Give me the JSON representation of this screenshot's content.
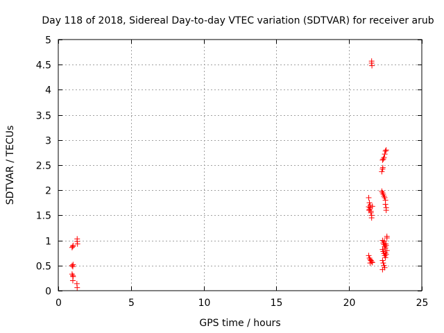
{
  "chart_data": {
    "type": "scatter",
    "title": "Day 118 of 2018, Sidereal Day-to-day VTEC variation (SDTVAR) for receiver arub",
    "xlabel": "GPS time / hours",
    "ylabel": "SDTVAR / TECUs",
    "xlim": [
      0,
      25
    ],
    "ylim": [
      0,
      5
    ],
    "xticks": [
      0,
      5,
      10,
      15,
      20,
      25
    ],
    "yticks": [
      0,
      0.5,
      1,
      1.5,
      2,
      2.5,
      3,
      3.5,
      4,
      4.5,
      5
    ],
    "xtick_labels": [
      "0",
      "5",
      "10",
      "15",
      "20",
      "25"
    ],
    "ytick_labels": [
      "0",
      "0.5",
      "1",
      "1.5",
      "2",
      "2.5",
      "3",
      "3.5",
      "4",
      "4.5",
      "5"
    ],
    "grid": true,
    "marker": "+",
    "color": "#ff0000",
    "series": [
      {
        "name": "SDTVAR",
        "points": [
          [
            0.95,
            0.86
          ],
          [
            1.0,
            0.88
          ],
          [
            1.02,
            0.9
          ],
          [
            0.95,
            0.5
          ],
          [
            1.0,
            0.48
          ],
          [
            1.02,
            0.52
          ],
          [
            0.95,
            0.33
          ],
          [
            1.0,
            0.3
          ],
          [
            1.02,
            0.28
          ],
          [
            1.0,
            0.2
          ],
          [
            1.3,
            1.03
          ],
          [
            1.3,
            0.98
          ],
          [
            1.32,
            0.93
          ],
          [
            1.28,
            0.14
          ],
          [
            1.3,
            0.06
          ],
          [
            21.55,
            4.57
          ],
          [
            21.55,
            4.53
          ],
          [
            21.57,
            4.48
          ],
          [
            21.35,
            1.85
          ],
          [
            21.4,
            1.75
          ],
          [
            21.45,
            1.7
          ],
          [
            21.35,
            1.67
          ],
          [
            21.4,
            1.62
          ],
          [
            21.5,
            1.58
          ],
          [
            21.5,
            1.55
          ],
          [
            21.55,
            1.5
          ],
          [
            21.55,
            1.45
          ],
          [
            21.6,
            1.68
          ],
          [
            21.45,
            1.65
          ],
          [
            21.38,
            1.6
          ],
          [
            21.35,
            0.7
          ],
          [
            21.4,
            0.65
          ],
          [
            21.45,
            0.62
          ],
          [
            21.5,
            0.6
          ],
          [
            21.55,
            0.58
          ],
          [
            21.6,
            0.56
          ],
          [
            21.45,
            0.55
          ],
          [
            22.25,
            2.37
          ],
          [
            22.3,
            2.42
          ],
          [
            22.32,
            2.45
          ],
          [
            22.3,
            2.6
          ],
          [
            22.35,
            2.62
          ],
          [
            22.4,
            2.65
          ],
          [
            22.45,
            2.72
          ],
          [
            22.5,
            2.78
          ],
          [
            22.55,
            2.8
          ],
          [
            22.25,
            1.98
          ],
          [
            22.3,
            1.95
          ],
          [
            22.35,
            1.92
          ],
          [
            22.4,
            1.88
          ],
          [
            22.45,
            1.85
          ],
          [
            22.5,
            1.8
          ],
          [
            22.5,
            1.72
          ],
          [
            22.55,
            1.65
          ],
          [
            22.55,
            1.6
          ],
          [
            22.3,
            1.0
          ],
          [
            22.35,
            0.95
          ],
          [
            22.4,
            0.92
          ],
          [
            22.45,
            0.88
          ],
          [
            22.5,
            0.85
          ],
          [
            22.55,
            0.9
          ],
          [
            22.6,
            1.05
          ],
          [
            22.6,
            1.08
          ],
          [
            22.3,
            0.82
          ],
          [
            22.35,
            0.78
          ],
          [
            22.4,
            0.74
          ],
          [
            22.45,
            0.7
          ],
          [
            22.5,
            0.66
          ],
          [
            22.55,
            0.72
          ],
          [
            22.6,
            0.8
          ],
          [
            22.3,
            0.6
          ],
          [
            22.35,
            0.55
          ],
          [
            22.4,
            0.5
          ],
          [
            22.45,
            0.46
          ],
          [
            22.3,
            0.42
          ],
          [
            22.5,
            0.75
          ],
          [
            22.42,
            0.98
          ],
          [
            22.52,
            0.93
          ]
        ]
      }
    ]
  }
}
